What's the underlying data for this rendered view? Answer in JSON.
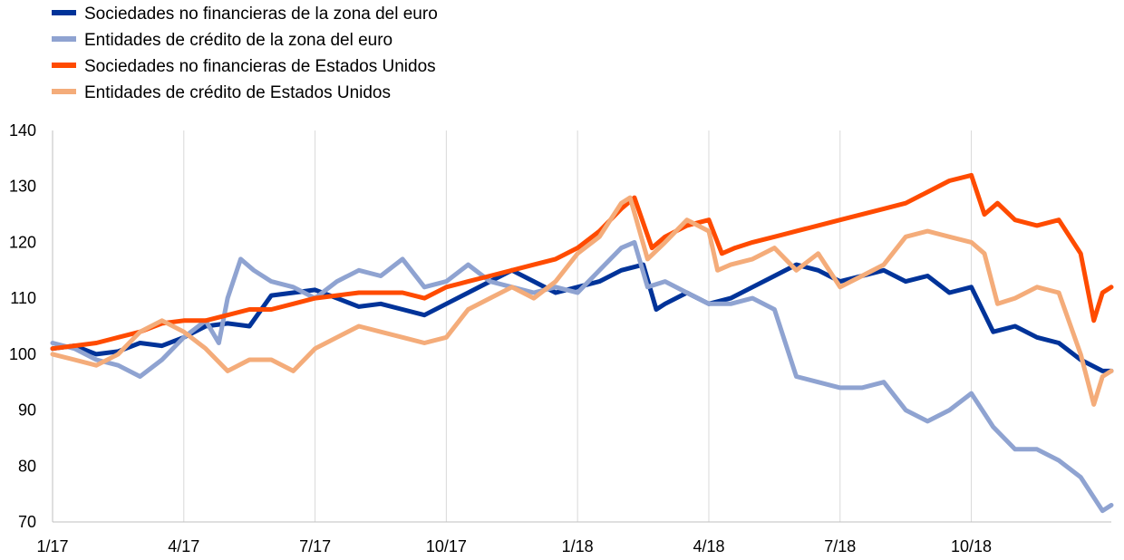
{
  "chart_data": {
    "type": "line",
    "title": "",
    "xlabel": "",
    "ylabel": "",
    "ylim": [
      70,
      140
    ],
    "yticks": [
      70,
      80,
      90,
      100,
      110,
      120,
      130,
      140
    ],
    "xlim": [
      0,
      24.2
    ],
    "x_tick_labels": [
      "1/17",
      "4/17",
      "7/17",
      "10/17",
      "1/18",
      "4/18",
      "7/18",
      "10/18"
    ],
    "x_tick_positions": [
      0,
      3,
      6,
      9,
      12,
      15,
      18,
      21
    ],
    "legend_position": "top-left",
    "grid": "vertical",
    "series": [
      {
        "name": "Sociedades no financieras de la zona del euro",
        "color": "#003399",
        "points": [
          [
            0,
            101
          ],
          [
            0.5,
            101.5
          ],
          [
            1,
            100
          ],
          [
            1.5,
            100.5
          ],
          [
            2,
            102
          ],
          [
            2.5,
            101.5
          ],
          [
            3,
            103
          ],
          [
            3.5,
            105
          ],
          [
            4,
            105.5
          ],
          [
            4.5,
            105
          ],
          [
            5,
            110.5
          ],
          [
            5.5,
            111
          ],
          [
            6,
            111.5
          ],
          [
            6.5,
            110
          ],
          [
            7,
            108.5
          ],
          [
            7.5,
            109
          ],
          [
            8,
            108
          ],
          [
            8.5,
            107
          ],
          [
            9,
            109
          ],
          [
            9.5,
            111
          ],
          [
            10,
            113
          ],
          [
            10.5,
            115
          ],
          [
            11,
            113
          ],
          [
            11.5,
            111
          ],
          [
            12,
            112
          ],
          [
            12.5,
            113
          ],
          [
            13,
            115
          ],
          [
            13.5,
            116
          ],
          [
            13.8,
            108
          ],
          [
            14,
            109
          ],
          [
            14.5,
            111
          ],
          [
            15,
            109
          ],
          [
            15.5,
            110
          ],
          [
            16,
            112
          ],
          [
            16.5,
            114
          ],
          [
            17,
            116
          ],
          [
            17.5,
            115
          ],
          [
            18,
            113
          ],
          [
            18.5,
            114
          ],
          [
            19,
            115
          ],
          [
            19.5,
            113
          ],
          [
            20,
            114
          ],
          [
            20.5,
            111
          ],
          [
            21,
            112
          ],
          [
            21.5,
            104
          ],
          [
            22,
            105
          ],
          [
            22.5,
            103
          ],
          [
            23,
            102
          ],
          [
            23.5,
            99
          ],
          [
            24,
            97
          ],
          [
            24.2,
            97
          ]
        ]
      },
      {
        "name": "Entidades de crédito de la zona del euro",
        "color": "#8fa3d1",
        "points": [
          [
            0,
            102
          ],
          [
            0.5,
            101
          ],
          [
            1,
            99
          ],
          [
            1.5,
            98
          ],
          [
            2,
            96
          ],
          [
            2.5,
            99
          ],
          [
            3,
            103
          ],
          [
            3.5,
            106
          ],
          [
            3.8,
            102
          ],
          [
            4,
            110
          ],
          [
            4.3,
            117
          ],
          [
            4.6,
            115
          ],
          [
            5,
            113
          ],
          [
            5.5,
            112
          ],
          [
            6,
            110
          ],
          [
            6.5,
            113
          ],
          [
            7,
            115
          ],
          [
            7.5,
            114
          ],
          [
            8,
            117
          ],
          [
            8.5,
            112
          ],
          [
            9,
            113
          ],
          [
            9.5,
            116
          ],
          [
            10,
            113
          ],
          [
            10.5,
            112
          ],
          [
            11,
            111
          ],
          [
            11.5,
            112
          ],
          [
            12,
            111
          ],
          [
            12.5,
            115
          ],
          [
            13,
            119
          ],
          [
            13.3,
            120
          ],
          [
            13.6,
            112
          ],
          [
            14,
            113
          ],
          [
            14.5,
            111
          ],
          [
            15,
            109
          ],
          [
            15.5,
            109
          ],
          [
            16,
            110
          ],
          [
            16.5,
            108
          ],
          [
            17,
            96
          ],
          [
            17.5,
            95
          ],
          [
            18,
            94
          ],
          [
            18.5,
            94
          ],
          [
            19,
            95
          ],
          [
            19.5,
            90
          ],
          [
            20,
            88
          ],
          [
            20.5,
            90
          ],
          [
            21,
            93
          ],
          [
            21.5,
            87
          ],
          [
            22,
            83
          ],
          [
            22.5,
            83
          ],
          [
            23,
            81
          ],
          [
            23.5,
            78
          ],
          [
            24,
            72
          ],
          [
            24.2,
            73
          ]
        ]
      },
      {
        "name": "Sociedades no financieras de Estados Unidos",
        "color": "#ff4b00",
        "points": [
          [
            0,
            101
          ],
          [
            0.5,
            101.5
          ],
          [
            1,
            102
          ],
          [
            1.5,
            103
          ],
          [
            2,
            104
          ],
          [
            2.5,
            105.5
          ],
          [
            3,
            106
          ],
          [
            3.5,
            106
          ],
          [
            4,
            107
          ],
          [
            4.5,
            108
          ],
          [
            5,
            108
          ],
          [
            5.5,
            109
          ],
          [
            6,
            110
          ],
          [
            6.5,
            110.5
          ],
          [
            7,
            111
          ],
          [
            7.5,
            111
          ],
          [
            8,
            111
          ],
          [
            8.5,
            110
          ],
          [
            9,
            112
          ],
          [
            9.5,
            113
          ],
          [
            10,
            114
          ],
          [
            10.5,
            115
          ],
          [
            11,
            116
          ],
          [
            11.5,
            117
          ],
          [
            12,
            119
          ],
          [
            12.5,
            122
          ],
          [
            13,
            126
          ],
          [
            13.3,
            128
          ],
          [
            13.7,
            119
          ],
          [
            14,
            121
          ],
          [
            14.5,
            123
          ],
          [
            15,
            124
          ],
          [
            15.3,
            118
          ],
          [
            15.6,
            119
          ],
          [
            16,
            120
          ],
          [
            16.5,
            121
          ],
          [
            17,
            122
          ],
          [
            17.5,
            123
          ],
          [
            18,
            124
          ],
          [
            18.5,
            125
          ],
          [
            19,
            126
          ],
          [
            19.5,
            127
          ],
          [
            20,
            129
          ],
          [
            20.5,
            131
          ],
          [
            21,
            132
          ],
          [
            21.3,
            125
          ],
          [
            21.6,
            127
          ],
          [
            22,
            124
          ],
          [
            22.5,
            123
          ],
          [
            23,
            124
          ],
          [
            23.5,
            118
          ],
          [
            23.8,
            106
          ],
          [
            24,
            111
          ],
          [
            24.2,
            112
          ]
        ]
      },
      {
        "name": "Entidades de crédito de Estados Unidos",
        "color": "#f4ac7a",
        "points": [
          [
            0,
            100
          ],
          [
            0.5,
            99
          ],
          [
            1,
            98
          ],
          [
            1.5,
            100
          ],
          [
            2,
            104
          ],
          [
            2.5,
            106
          ],
          [
            3,
            104
          ],
          [
            3.5,
            101
          ],
          [
            4,
            97
          ],
          [
            4.5,
            99
          ],
          [
            5,
            99
          ],
          [
            5.5,
            97
          ],
          [
            6,
            101
          ],
          [
            6.5,
            103
          ],
          [
            7,
            105
          ],
          [
            7.5,
            104
          ],
          [
            8,
            103
          ],
          [
            8.5,
            102
          ],
          [
            9,
            103
          ],
          [
            9.5,
            108
          ],
          [
            10,
            110
          ],
          [
            10.5,
            112
          ],
          [
            11,
            110
          ],
          [
            11.5,
            113
          ],
          [
            12,
            118
          ],
          [
            12.5,
            121
          ],
          [
            13,
            127
          ],
          [
            13.2,
            128
          ],
          [
            13.6,
            117
          ],
          [
            14,
            120
          ],
          [
            14.5,
            124
          ],
          [
            15,
            122
          ],
          [
            15.2,
            115
          ],
          [
            15.5,
            116
          ],
          [
            16,
            117
          ],
          [
            16.5,
            119
          ],
          [
            17,
            115
          ],
          [
            17.5,
            118
          ],
          [
            18,
            112
          ],
          [
            18.5,
            114
          ],
          [
            19,
            116
          ],
          [
            19.5,
            121
          ],
          [
            20,
            122
          ],
          [
            20.5,
            121
          ],
          [
            21,
            120
          ],
          [
            21.3,
            118
          ],
          [
            21.6,
            109
          ],
          [
            22,
            110
          ],
          [
            22.5,
            112
          ],
          [
            23,
            111
          ],
          [
            23.5,
            100
          ],
          [
            23.8,
            91
          ],
          [
            24,
            96
          ],
          [
            24.2,
            97
          ]
        ]
      }
    ]
  }
}
